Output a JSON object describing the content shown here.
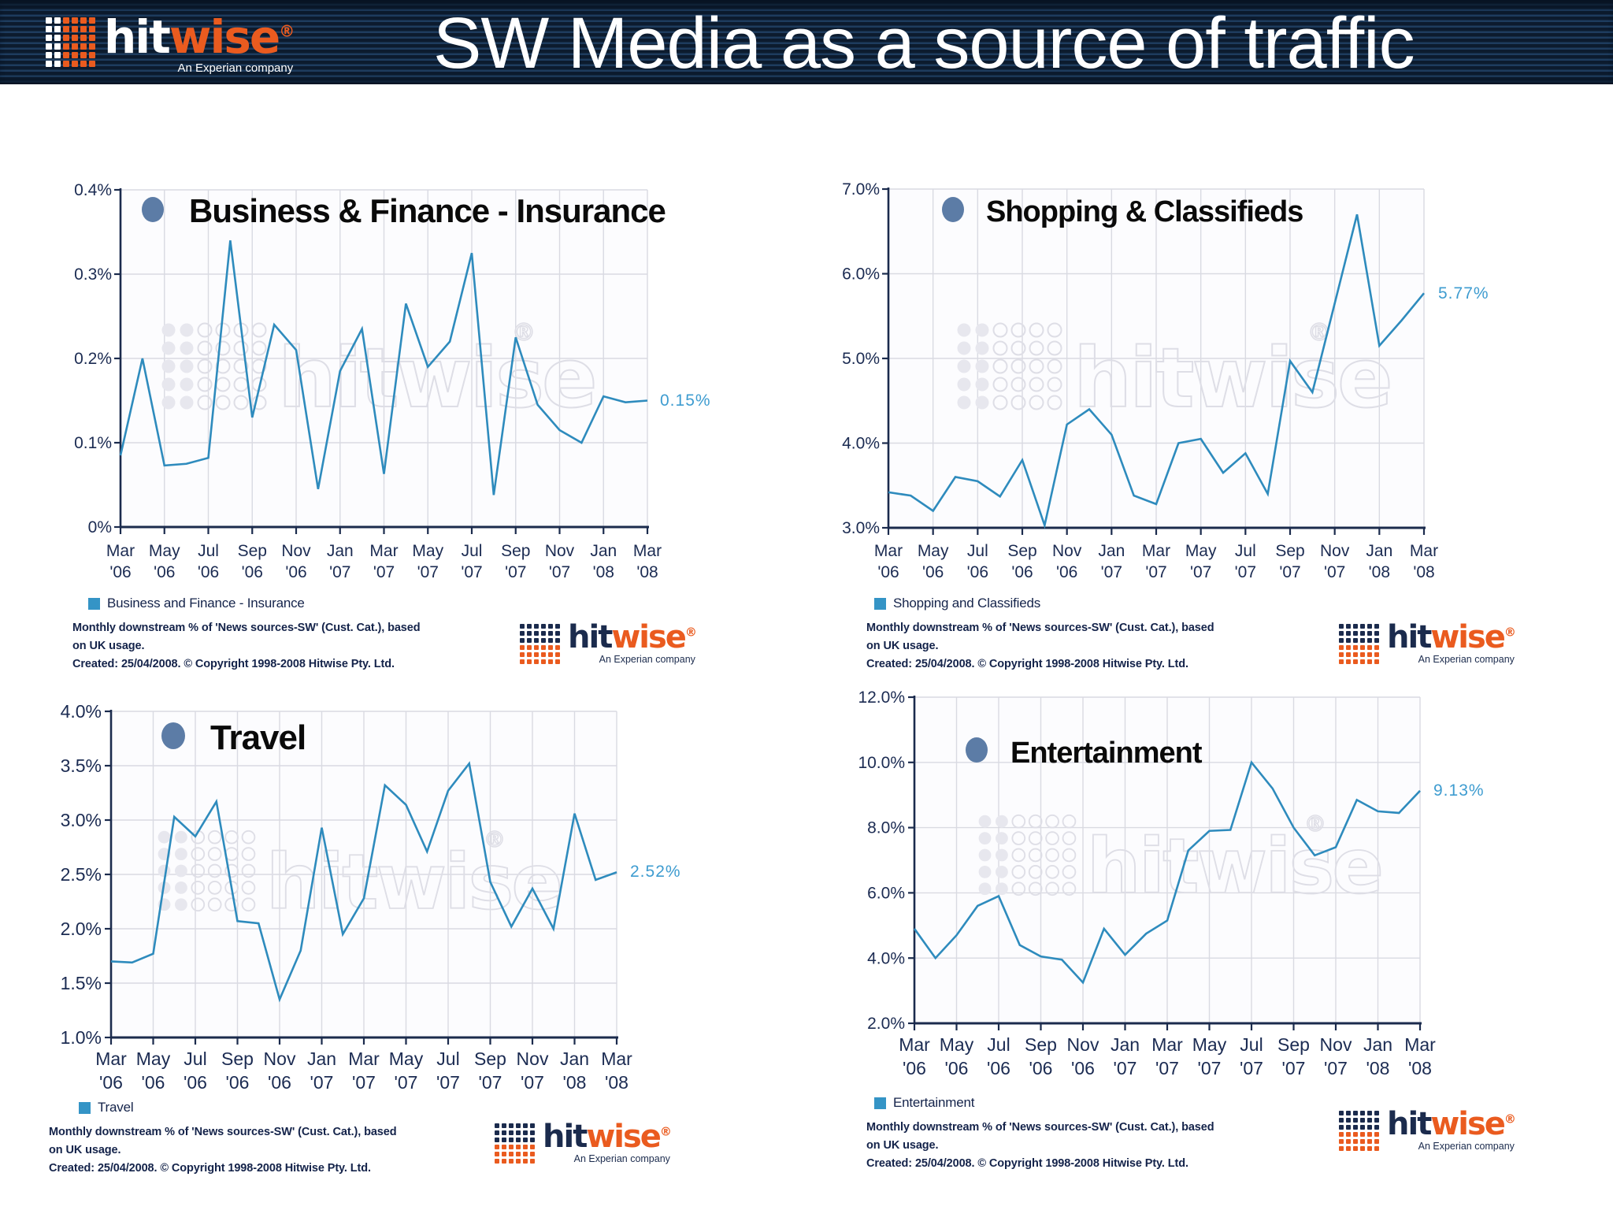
{
  "header": {
    "title": "SW Media as a source of traffic",
    "logo": {
      "hit": "hit",
      "wise": "wise",
      "registered": "®",
      "tagline": "An Experian company"
    }
  },
  "watermark": {
    "text": "hitwise",
    "registered": "®"
  },
  "caption_lines": [
    "Monthly downstream % of 'News sources-SW' (Cust. Cat.), based",
    "on UK usage.",
    "Created: 25/04/2008. © Copyright 1998-2008 Hitwise Pty. Ltd."
  ],
  "colors": {
    "header_bg": "#0c1b2e",
    "header_stripe": "#1e3c5e",
    "orange": "#ea5b1f",
    "navy": "#1b2b4d",
    "line": "#2e8bbd",
    "end_label": "#3e9cd0",
    "grid": "#d9dae2",
    "axis": "#1b2b4d",
    "bullet": "#5c7ca6",
    "title_text": "#0a0a0a",
    "label_text": "#1b2b52",
    "legend_swatch": "#3494c6",
    "watermark": "#dedee6",
    "plot_bg": "#fcfcfe"
  },
  "chart_data": [
    {
      "id": "business-finance-insurance",
      "type": "line",
      "title": "Business & Finance - Insurance",
      "legend_label": "Business and Finance - Insurance",
      "end_label": "0.15%",
      "ylim": [
        0,
        0.4
      ],
      "ytick_labels": [
        "0.4%",
        "0.3%",
        "0.2%",
        "0.1%",
        "0%"
      ],
      "x_tick_labels": [
        [
          "Mar",
          "'06"
        ],
        [
          "May",
          "'06"
        ],
        [
          "Jul",
          "'06"
        ],
        [
          "Sep",
          "'06"
        ],
        [
          "Nov",
          "'06"
        ],
        [
          "Jan",
          "'07"
        ],
        [
          "Mar",
          "'07"
        ],
        [
          "May",
          "'07"
        ],
        [
          "Jul",
          "'07"
        ],
        [
          "Sep",
          "'07"
        ],
        [
          "Nov",
          "'07"
        ],
        [
          "Jan",
          "'08"
        ],
        [
          "Mar",
          "'08"
        ]
      ],
      "x_months": [
        "Mar '06",
        "Apr '06",
        "May '06",
        "Jun '06",
        "Jul '06",
        "Aug '06",
        "Sep '06",
        "Oct '06",
        "Nov '06",
        "Dec '06",
        "Jan '07",
        "Feb '07",
        "Mar '07",
        "Apr '07",
        "May '07",
        "Jun '07",
        "Jul '07",
        "Aug '07",
        "Sep '07",
        "Oct '07",
        "Nov '07",
        "Dec '07",
        "Jan '08",
        "Feb '08",
        "Mar '08"
      ],
      "values": [
        0.085,
        0.2,
        0.073,
        0.075,
        0.082,
        0.34,
        0.13,
        0.24,
        0.21,
        0.045,
        0.185,
        0.235,
        0.063,
        0.265,
        0.19,
        0.22,
        0.325,
        0.038,
        0.225,
        0.145,
        0.115,
        0.1,
        0.155,
        0.148,
        0.15
      ]
    },
    {
      "id": "shopping-classifieds",
      "type": "line",
      "title": "Shopping & Classifieds",
      "legend_label": "Shopping and Classifieds",
      "end_label": "5.77%",
      "ylim": [
        3.0,
        7.0
      ],
      "ytick_labels": [
        "7.0%",
        "6.0%",
        "5.0%",
        "4.0%",
        "3.0%"
      ],
      "x_tick_labels": [
        [
          "Mar",
          "'06"
        ],
        [
          "May",
          "'06"
        ],
        [
          "Jul",
          "'06"
        ],
        [
          "Sep",
          "'06"
        ],
        [
          "Nov",
          "'06"
        ],
        [
          "Jan",
          "'07"
        ],
        [
          "Mar",
          "'07"
        ],
        [
          "May",
          "'07"
        ],
        [
          "Jul",
          "'07"
        ],
        [
          "Sep",
          "'07"
        ],
        [
          "Nov",
          "'07"
        ],
        [
          "Jan",
          "'08"
        ],
        [
          "Mar",
          "'08"
        ]
      ],
      "x_months": [
        "Mar '06",
        "Apr '06",
        "May '06",
        "Jun '06",
        "Jul '06",
        "Aug '06",
        "Sep '06",
        "Oct '06",
        "Nov '06",
        "Dec '06",
        "Jan '07",
        "Feb '07",
        "Mar '07",
        "Apr '07",
        "May '07",
        "Jun '07",
        "Jul '07",
        "Aug '07",
        "Sep '07",
        "Oct '07",
        "Nov '07",
        "Dec '07",
        "Jan '08",
        "Feb '08",
        "Mar '08"
      ],
      "values": [
        3.42,
        3.38,
        3.2,
        3.6,
        3.55,
        3.37,
        3.8,
        3.03,
        4.22,
        4.4,
        4.1,
        3.38,
        3.28,
        4.0,
        4.05,
        3.65,
        3.88,
        3.4,
        4.97,
        4.6,
        5.65,
        6.7,
        5.15,
        5.45,
        5.77
      ]
    },
    {
      "id": "travel",
      "type": "line",
      "title": "Travel",
      "legend_label": "Travel",
      "end_label": "2.52%",
      "ylim": [
        1.0,
        4.0
      ],
      "ytick_labels": [
        "4.0%",
        "3.5%",
        "3.0%",
        "2.5%",
        "2.0%",
        "1.5%",
        "1.0%"
      ],
      "x_tick_labels": [
        [
          "Mar",
          "'06"
        ],
        [
          "May",
          "'06"
        ],
        [
          "Jul",
          "'06"
        ],
        [
          "Sep",
          "'06"
        ],
        [
          "Nov",
          "'06"
        ],
        [
          "Jan",
          "'07"
        ],
        [
          "Mar",
          "'07"
        ],
        [
          "May",
          "'07"
        ],
        [
          "Jul",
          "'07"
        ],
        [
          "Sep",
          "'07"
        ],
        [
          "Nov",
          "'07"
        ],
        [
          "Jan",
          "'08"
        ],
        [
          "Mar",
          "'08"
        ]
      ],
      "x_months": [
        "Mar '06",
        "Apr '06",
        "May '06",
        "Jun '06",
        "Jul '06",
        "Aug '06",
        "Sep '06",
        "Oct '06",
        "Nov '06",
        "Dec '06",
        "Jan '07",
        "Feb '07",
        "Mar '07",
        "Apr '07",
        "May '07",
        "Jun '07",
        "Jul '07",
        "Aug '07",
        "Sep '07",
        "Oct '07",
        "Nov '07",
        "Dec '07",
        "Jan '08",
        "Feb '08",
        "Mar '08"
      ],
      "values": [
        1.7,
        1.69,
        1.77,
        3.03,
        2.85,
        3.17,
        2.07,
        2.05,
        1.35,
        1.8,
        2.93,
        1.95,
        2.28,
        3.32,
        3.14,
        2.71,
        3.27,
        3.52,
        2.43,
        2.02,
        2.37,
        2.0,
        3.06,
        2.45,
        2.52
      ]
    },
    {
      "id": "entertainment",
      "type": "line",
      "title": "Entertainment",
      "legend_label": "Entertainment",
      "end_label": "9.13%",
      "ylim": [
        2.0,
        12.0
      ],
      "ytick_labels": [
        "12.0%",
        "10.0%",
        "8.0%",
        "6.0%",
        "4.0%",
        "2.0%"
      ],
      "x_tick_labels": [
        [
          "Mar",
          "'06"
        ],
        [
          "May",
          "'06"
        ],
        [
          "Jul",
          "'06"
        ],
        [
          "Sep",
          "'06"
        ],
        [
          "Nov",
          "'06"
        ],
        [
          "Jan",
          "'07"
        ],
        [
          "Mar",
          "'07"
        ],
        [
          "May",
          "'07"
        ],
        [
          "Jul",
          "'07"
        ],
        [
          "Sep",
          "'07"
        ],
        [
          "Nov",
          "'07"
        ],
        [
          "Jan",
          "'08"
        ],
        [
          "Mar",
          "'08"
        ]
      ],
      "x_months": [
        "Mar '06",
        "Apr '06",
        "May '06",
        "Jun '06",
        "Jul '06",
        "Aug '06",
        "Sep '06",
        "Oct '06",
        "Nov '06",
        "Dec '06",
        "Jan '07",
        "Feb '07",
        "Mar '07",
        "Apr '07",
        "May '07",
        "Jun '07",
        "Jul '07",
        "Aug '07",
        "Sep '07",
        "Oct '07",
        "Nov '07",
        "Dec '07",
        "Jan '08",
        "Feb '08",
        "Mar '08"
      ],
      "values": [
        4.9,
        4.0,
        4.7,
        5.6,
        5.9,
        4.4,
        4.05,
        3.95,
        3.25,
        4.9,
        4.1,
        4.75,
        5.15,
        7.3,
        7.9,
        7.93,
        10.0,
        9.2,
        8.0,
        7.15,
        7.4,
        8.85,
        8.5,
        8.45,
        9.13
      ]
    }
  ]
}
